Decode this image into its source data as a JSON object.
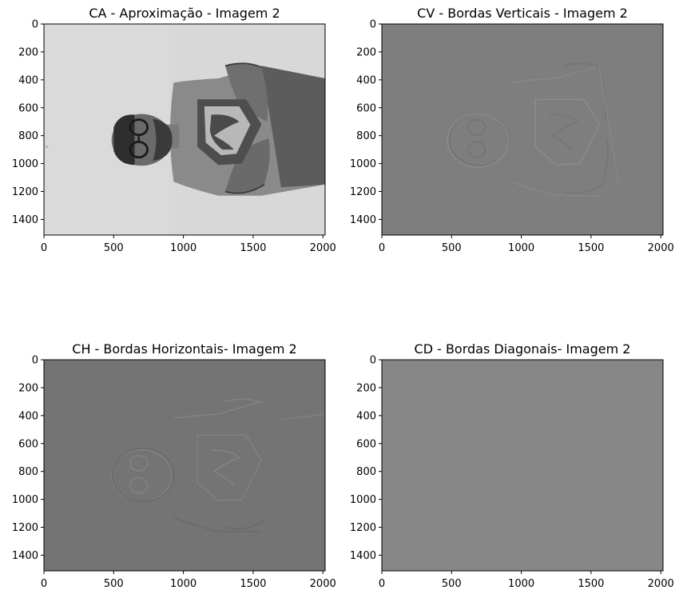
{
  "chart_data": [
    {
      "type": "image",
      "title": "CA - Aproximação - Imagem 2",
      "x_ticks": [
        0,
        500,
        1000,
        1500,
        2000
      ],
      "y_ticks": [
        0,
        200,
        400,
        600,
        800,
        1000,
        1200,
        1400
      ],
      "xlim": [
        0,
        2016
      ],
      "ylim": [
        1512,
        0
      ],
      "background": "#d6d6d6",
      "content": "grayscale photo of a man lying sideways with arms crossed, wearing glasses and a superman t-shirt"
    },
    {
      "type": "image",
      "title": "CV - Bordas Verticais - Imagem 2",
      "x_ticks": [
        0,
        500,
        1000,
        1500,
        2000
      ],
      "y_ticks": [
        0,
        200,
        400,
        600,
        800,
        1000,
        1200,
        1400
      ],
      "xlim": [
        0,
        2016
      ],
      "ylim": [
        1512,
        0
      ],
      "background": "#7e7e7e",
      "content": "faint embossed vertical edge map"
    },
    {
      "type": "image",
      "title": "CH - Bordas Horizontais- Imagem 2",
      "x_ticks": [
        0,
        500,
        1000,
        1500,
        2000
      ],
      "y_ticks": [
        0,
        200,
        400,
        600,
        800,
        1000,
        1200,
        1400
      ],
      "xlim": [
        0,
        2016
      ],
      "ylim": [
        1512,
        0
      ],
      "background": "#747474",
      "content": "faint embossed horizontal edge map"
    },
    {
      "type": "image",
      "title": "CD - Bordas Diagonais- Imagem 2",
      "x_ticks": [
        0,
        500,
        1000,
        1500,
        2000
      ],
      "y_ticks": [
        0,
        200,
        400,
        600,
        800,
        1000,
        1200,
        1400
      ],
      "xlim": [
        0,
        2016
      ],
      "ylim": [
        1512,
        0
      ],
      "background": "#878787",
      "content": "nearly uniform diagonal edge map"
    }
  ]
}
